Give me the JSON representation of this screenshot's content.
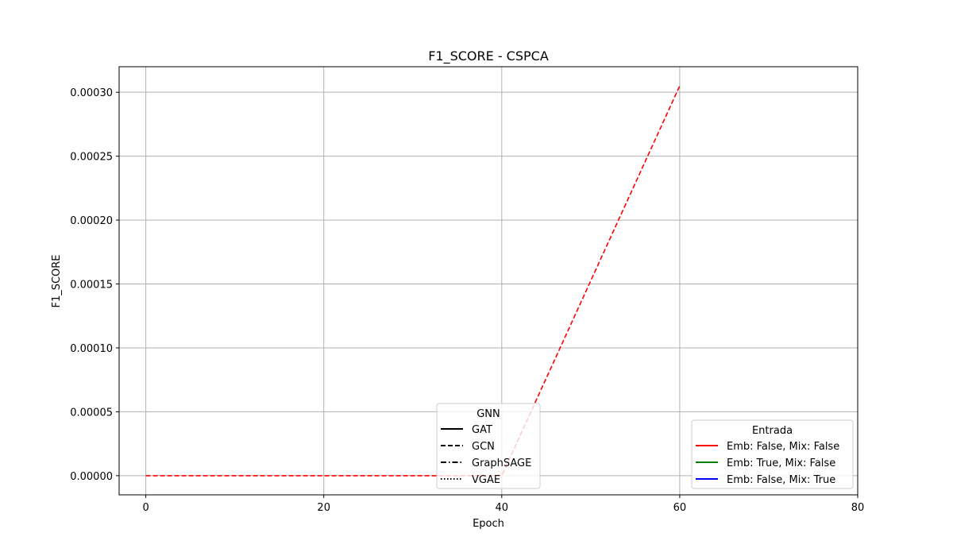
{
  "chart_data": {
    "type": "line",
    "title": "F1_SCORE - CSPCA",
    "xlabel": "Epoch",
    "ylabel": "F1_SCORE",
    "xlim": [
      -3,
      80
    ],
    "ylim": [
      -1.5e-05,
      0.00032
    ],
    "x_ticks": [
      0,
      20,
      40,
      60,
      80
    ],
    "x_tick_labels": [
      "0",
      "20",
      "40",
      "60",
      "80"
    ],
    "y_ticks": [
      0,
      5e-05,
      0.0001,
      0.00015,
      0.0002,
      0.00025,
      0.0003
    ],
    "y_tick_labels": [
      "0.00000",
      "0.00005",
      "0.00010",
      "0.00015",
      "0.00020",
      "0.00025",
      "0.00030"
    ],
    "grid": true,
    "series": [
      {
        "name": "Emb: False, Mix: False",
        "gnn": "GCN",
        "color": "#ff0000",
        "linestyle": "dashed",
        "x": [
          0,
          20,
          40,
          60
        ],
        "y": [
          0,
          0,
          0,
          0.000305
        ]
      }
    ],
    "legends": [
      {
        "title": "GNN",
        "placement": "lower-center",
        "entries": [
          {
            "label": "GAT",
            "linestyle": "solid",
            "color": "#000000"
          },
          {
            "label": "GCN",
            "linestyle": "dashed",
            "color": "#000000"
          },
          {
            "label": "GraphSAGE",
            "linestyle": "dashdot",
            "color": "#000000"
          },
          {
            "label": "VGAE",
            "linestyle": "dotted",
            "color": "#000000"
          }
        ]
      },
      {
        "title": "Entrada",
        "placement": "lower-right",
        "entries": [
          {
            "label": "Emb: False, Mix: False",
            "linestyle": "solid",
            "color": "#ff0000"
          },
          {
            "label": "Emb: True, Mix: False",
            "linestyle": "solid",
            "color": "#008000"
          },
          {
            "label": "Emb: False, Mix: True",
            "linestyle": "solid",
            "color": "#0000ff"
          }
        ]
      }
    ]
  }
}
